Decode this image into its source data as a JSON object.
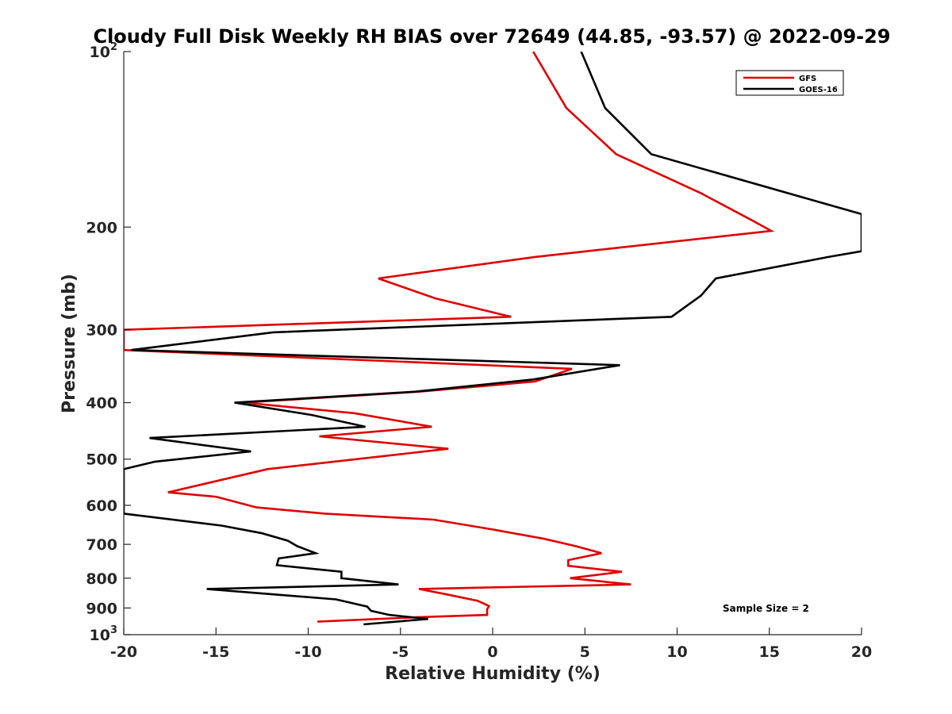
{
  "chart_data": {
    "type": "line",
    "title": "Cloudy Full Disk Weekly RH BIAS over 72649 (44.85, -93.57) @ 2022-09-29",
    "xlabel": "Relative Humidity (%)",
    "ylabel": "Pressure (mb)",
    "xlim": [
      -20,
      20
    ],
    "ylim": [
      100,
      1000
    ],
    "y_scale": "log",
    "y_reversed": true,
    "grid": false,
    "legend_position": "top-right",
    "x_ticks": [
      -20,
      -15,
      -10,
      -5,
      0,
      5,
      10,
      15,
      20
    ],
    "x_tick_labels": [
      "-20",
      "-15",
      "-10",
      "-5",
      "0",
      "5",
      "10",
      "15",
      "20"
    ],
    "y_ticks": [
      {
        "value": 100,
        "label": "10",
        "exp": "2"
      },
      {
        "value": 200,
        "label": "200",
        "exp": ""
      },
      {
        "value": 300,
        "label": "300",
        "exp": ""
      },
      {
        "value": 400,
        "label": "400",
        "exp": ""
      },
      {
        "value": 500,
        "label": "500",
        "exp": ""
      },
      {
        "value": 600,
        "label": "600",
        "exp": ""
      },
      {
        "value": 700,
        "label": "700",
        "exp": ""
      },
      {
        "value": 800,
        "label": "800",
        "exp": ""
      },
      {
        "value": 900,
        "label": "900",
        "exp": ""
      },
      {
        "value": 1000,
        "label": "10",
        "exp": "3"
      }
    ],
    "annotation": "Sample Size = 2",
    "series": [
      {
        "name": "GFS",
        "color": "#e00000",
        "points": [
          [
            2.2,
            100
          ],
          [
            4,
            125
          ],
          [
            6.7,
            150
          ],
          [
            11.3,
            175
          ],
          [
            14.1,
            195
          ],
          [
            15.1,
            203
          ],
          [
            2.3,
            225
          ],
          [
            -6.2,
            245
          ],
          [
            -3.1,
            265
          ],
          [
            1.0,
            285
          ],
          [
            -20,
            300
          ],
          [
            -20,
            325
          ],
          [
            4.3,
            350
          ],
          [
            2.3,
            368
          ],
          [
            -4,
            383
          ],
          [
            -13.5,
            400
          ],
          [
            -7.5,
            417
          ],
          [
            -3.3,
            440
          ],
          [
            -9.4,
            457
          ],
          [
            -2.4,
            480
          ],
          [
            -12.2,
            520
          ],
          [
            -17.6,
            570
          ],
          [
            -15.0,
            580
          ],
          [
            -12.8,
            605
          ],
          [
            -9.1,
            620
          ],
          [
            -3.2,
            635
          ],
          [
            0,
            660
          ],
          [
            2.8,
            685
          ],
          [
            4.5,
            705
          ],
          [
            5.9,
            725
          ],
          [
            4.1,
            745
          ],
          [
            4.1,
            762
          ],
          [
            7.0,
            780
          ],
          [
            4.2,
            800
          ],
          [
            7.5,
            820
          ],
          [
            -4,
            835
          ],
          [
            -2.5,
            853
          ],
          [
            -0.8,
            875
          ],
          [
            -0.2,
            893
          ],
          [
            -0.3,
            905
          ],
          [
            -0.3,
            925
          ],
          [
            -4,
            933
          ],
          [
            -9.5,
            950
          ]
        ]
      },
      {
        "name": "GOES-16",
        "color": "#000000",
        "points": [
          [
            4.8,
            100
          ],
          [
            6.1,
            125
          ],
          [
            8.6,
            150
          ],
          [
            20,
            190
          ],
          [
            20,
            220
          ],
          [
            18.2,
            225
          ],
          [
            12.1,
            245
          ],
          [
            11.3,
            262
          ],
          [
            9.7,
            285
          ],
          [
            -11.9,
            303
          ],
          [
            -19.6,
            325
          ],
          [
            6.9,
            345
          ],
          [
            2.2,
            365
          ],
          [
            -4.2,
            383
          ],
          [
            -14,
            400
          ],
          [
            -9.8,
            420
          ],
          [
            -6.9,
            440
          ],
          [
            -18.6,
            460
          ],
          [
            -13.1,
            485
          ],
          [
            -18.3,
            505
          ],
          [
            -20,
            520
          ],
          [
            -20,
            620
          ],
          [
            -14.7,
            650
          ],
          [
            -12.5,
            670
          ],
          [
            -11.1,
            690
          ],
          [
            -10.6,
            705
          ],
          [
            -9.6,
            725
          ],
          [
            -11.6,
            740
          ],
          [
            -11.7,
            760
          ],
          [
            -8.2,
            780
          ],
          [
            -8.2,
            800
          ],
          [
            -5.1,
            820
          ],
          [
            -15.5,
            835
          ],
          [
            -8.5,
            870
          ],
          [
            -6.8,
            895
          ],
          [
            -6.6,
            910
          ],
          [
            -5.6,
            925
          ],
          [
            -3.5,
            940
          ],
          [
            -7,
            960
          ]
        ]
      }
    ]
  }
}
